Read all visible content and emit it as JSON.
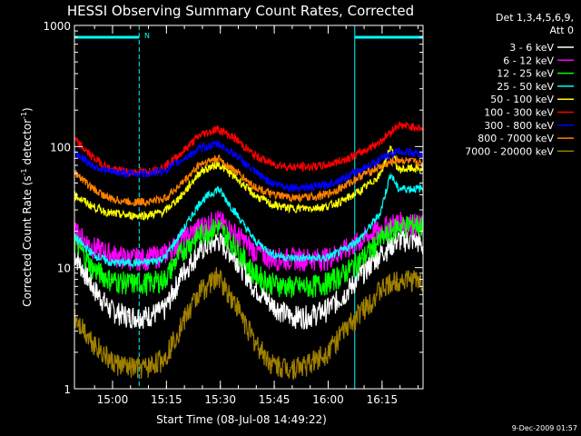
{
  "colors": {
    "background": "#000000",
    "foreground": "#ffffff",
    "cyan": "#00ffff"
  },
  "chart_data": {
    "type": "line",
    "title": "HESSI Observing Summary Count Rates, Corrected",
    "xlabel": "Start Time (08-Jul-08 14:49:22)",
    "ylabel": "Corrected Count Rate (s⁻¹ detector⁻¹)",
    "ylabel_parts": {
      "main": "Corrected Count Rate (s",
      "sup1": "-1",
      "mid": " detector",
      "sup2": "-1",
      "end": ")"
    },
    "y_scale": "log",
    "ylim": [
      1,
      1000
    ],
    "xlim_minutes_after_1449_22": [
      0,
      97
    ],
    "x_ticks": [
      {
        "label": "15:00",
        "minute": 10.6
      },
      {
        "label": "15:15",
        "minute": 25.6
      },
      {
        "label": "15:30",
        "minute": 40.6
      },
      {
        "label": "15:45",
        "minute": 55.6
      },
      {
        "label": "16:00",
        "minute": 70.6
      },
      {
        "label": "16:15",
        "minute": 85.6
      }
    ],
    "y_ticks": [
      {
        "label": "1",
        "value": 1
      },
      {
        "label": "10",
        "value": 10
      },
      {
        "label": "100",
        "value": 100
      },
      {
        "label": "1000",
        "value": 1000
      }
    ],
    "legend": {
      "header": [
        "Det 1,3,4,5,6,9,",
        "Att 0"
      ],
      "placement": "right"
    },
    "night_intervals_minutes": [
      [
        0,
        18
      ],
      [
        78,
        97
      ]
    ],
    "saa_label": "N",
    "saa_marker_minute": 18,
    "series": [
      {
        "name": "3 - 6 keV",
        "color": "#ffffff",
        "x": [
          0,
          5,
          10,
          15,
          20,
          25,
          30,
          35,
          40,
          45,
          50,
          55,
          60,
          65,
          70,
          75,
          80,
          85,
          90,
          95,
          97
        ],
        "y": [
          13,
          7,
          4.5,
          4,
          4,
          4.5,
          9,
          14,
          17,
          12,
          7,
          5,
          4,
          4,
          4.5,
          6,
          9,
          13,
          17,
          17,
          15
        ]
      },
      {
        "name": "6 - 12 keV",
        "color": "#ff00ff",
        "x": [
          0,
          5,
          10,
          15,
          20,
          25,
          30,
          35,
          40,
          45,
          50,
          55,
          60,
          65,
          70,
          75,
          80,
          85,
          90,
          95,
          97
        ],
        "y": [
          20,
          15,
          13,
          12,
          12,
          13,
          17,
          22,
          25,
          19,
          14,
          12,
          12,
          12,
          12,
          14,
          17,
          21,
          24,
          23,
          22
        ]
      },
      {
        "name": "12 - 25 keV",
        "color": "#00ff00",
        "x": [
          0,
          5,
          10,
          15,
          20,
          25,
          30,
          35,
          40,
          45,
          50,
          55,
          60,
          65,
          70,
          75,
          80,
          85,
          90,
          95,
          97
        ],
        "y": [
          17,
          10,
          8,
          7.5,
          7.5,
          8,
          14,
          19,
          22,
          15,
          9,
          7.5,
          7,
          7,
          7.5,
          9,
          12,
          17,
          22,
          23,
          22
        ]
      },
      {
        "name": "25 - 50 keV",
        "color": "#00ffff",
        "x": [
          0,
          5,
          10,
          15,
          20,
          25,
          30,
          35,
          40,
          45,
          50,
          55,
          60,
          65,
          70,
          75,
          80,
          85,
          88,
          90,
          95,
          97
        ],
        "y": [
          18,
          13,
          11,
          11,
          11,
          12,
          20,
          35,
          45,
          28,
          17,
          13,
          12,
          12,
          12,
          14,
          18,
          28,
          60,
          45,
          45,
          45
        ]
      },
      {
        "name": "50 - 100 keV",
        "color": "#ffff00",
        "x": [
          0,
          5,
          10,
          15,
          20,
          25,
          30,
          35,
          40,
          45,
          50,
          55,
          60,
          65,
          70,
          75,
          80,
          85,
          88,
          90,
          95,
          97
        ],
        "y": [
          40,
          32,
          28,
          27,
          27,
          29,
          40,
          62,
          72,
          55,
          40,
          33,
          31,
          31,
          32,
          36,
          44,
          58,
          100,
          65,
          66,
          65
        ]
      },
      {
        "name": "100 - 300 keV",
        "color": "#ff0000",
        "x": [
          0,
          5,
          10,
          15,
          20,
          25,
          30,
          35,
          40,
          45,
          50,
          55,
          60,
          65,
          70,
          75,
          80,
          85,
          90,
          95,
          97
        ],
        "y": [
          115,
          82,
          65,
          62,
          62,
          68,
          90,
          125,
          140,
          115,
          85,
          72,
          68,
          68,
          70,
          78,
          90,
          110,
          150,
          145,
          140
        ]
      },
      {
        "name": "300 - 800 keV",
        "color": "#0000ff",
        "x": [
          0,
          5,
          10,
          15,
          20,
          25,
          30,
          35,
          40,
          45,
          50,
          55,
          60,
          65,
          70,
          75,
          80,
          85,
          90,
          95,
          97
        ],
        "y": [
          90,
          70,
          62,
          60,
          60,
          63,
          78,
          97,
          105,
          85,
          62,
          50,
          46,
          46,
          48,
          55,
          65,
          78,
          92,
          88,
          85
        ]
      },
      {
        "name": "800 - 7000 keV",
        "color": "#ff8000",
        "x": [
          0,
          5,
          10,
          15,
          20,
          25,
          30,
          35,
          40,
          45,
          50,
          55,
          60,
          65,
          70,
          75,
          80,
          85,
          90,
          95,
          97
        ],
        "y": [
          62,
          45,
          37,
          35,
          35,
          37,
          50,
          72,
          80,
          62,
          47,
          40,
          38,
          38,
          40,
          47,
          58,
          68,
          78,
          74,
          72
        ]
      },
      {
        "name": "7000 - 20000 keV",
        "color": "#a08000",
        "x": [
          0,
          5,
          10,
          15,
          20,
          25,
          30,
          35,
          40,
          45,
          50,
          55,
          60,
          65,
          70,
          75,
          80,
          85,
          90,
          95,
          97
        ],
        "y": [
          4,
          2.5,
          1.7,
          1.5,
          1.5,
          1.8,
          3.5,
          6.5,
          8.5,
          5,
          2.5,
          1.6,
          1.5,
          1.6,
          2,
          3,
          4.5,
          6.5,
          8,
          8,
          7.5
        ]
      }
    ]
  },
  "footer": {
    "date": "9-Dec-2009 01:57"
  }
}
